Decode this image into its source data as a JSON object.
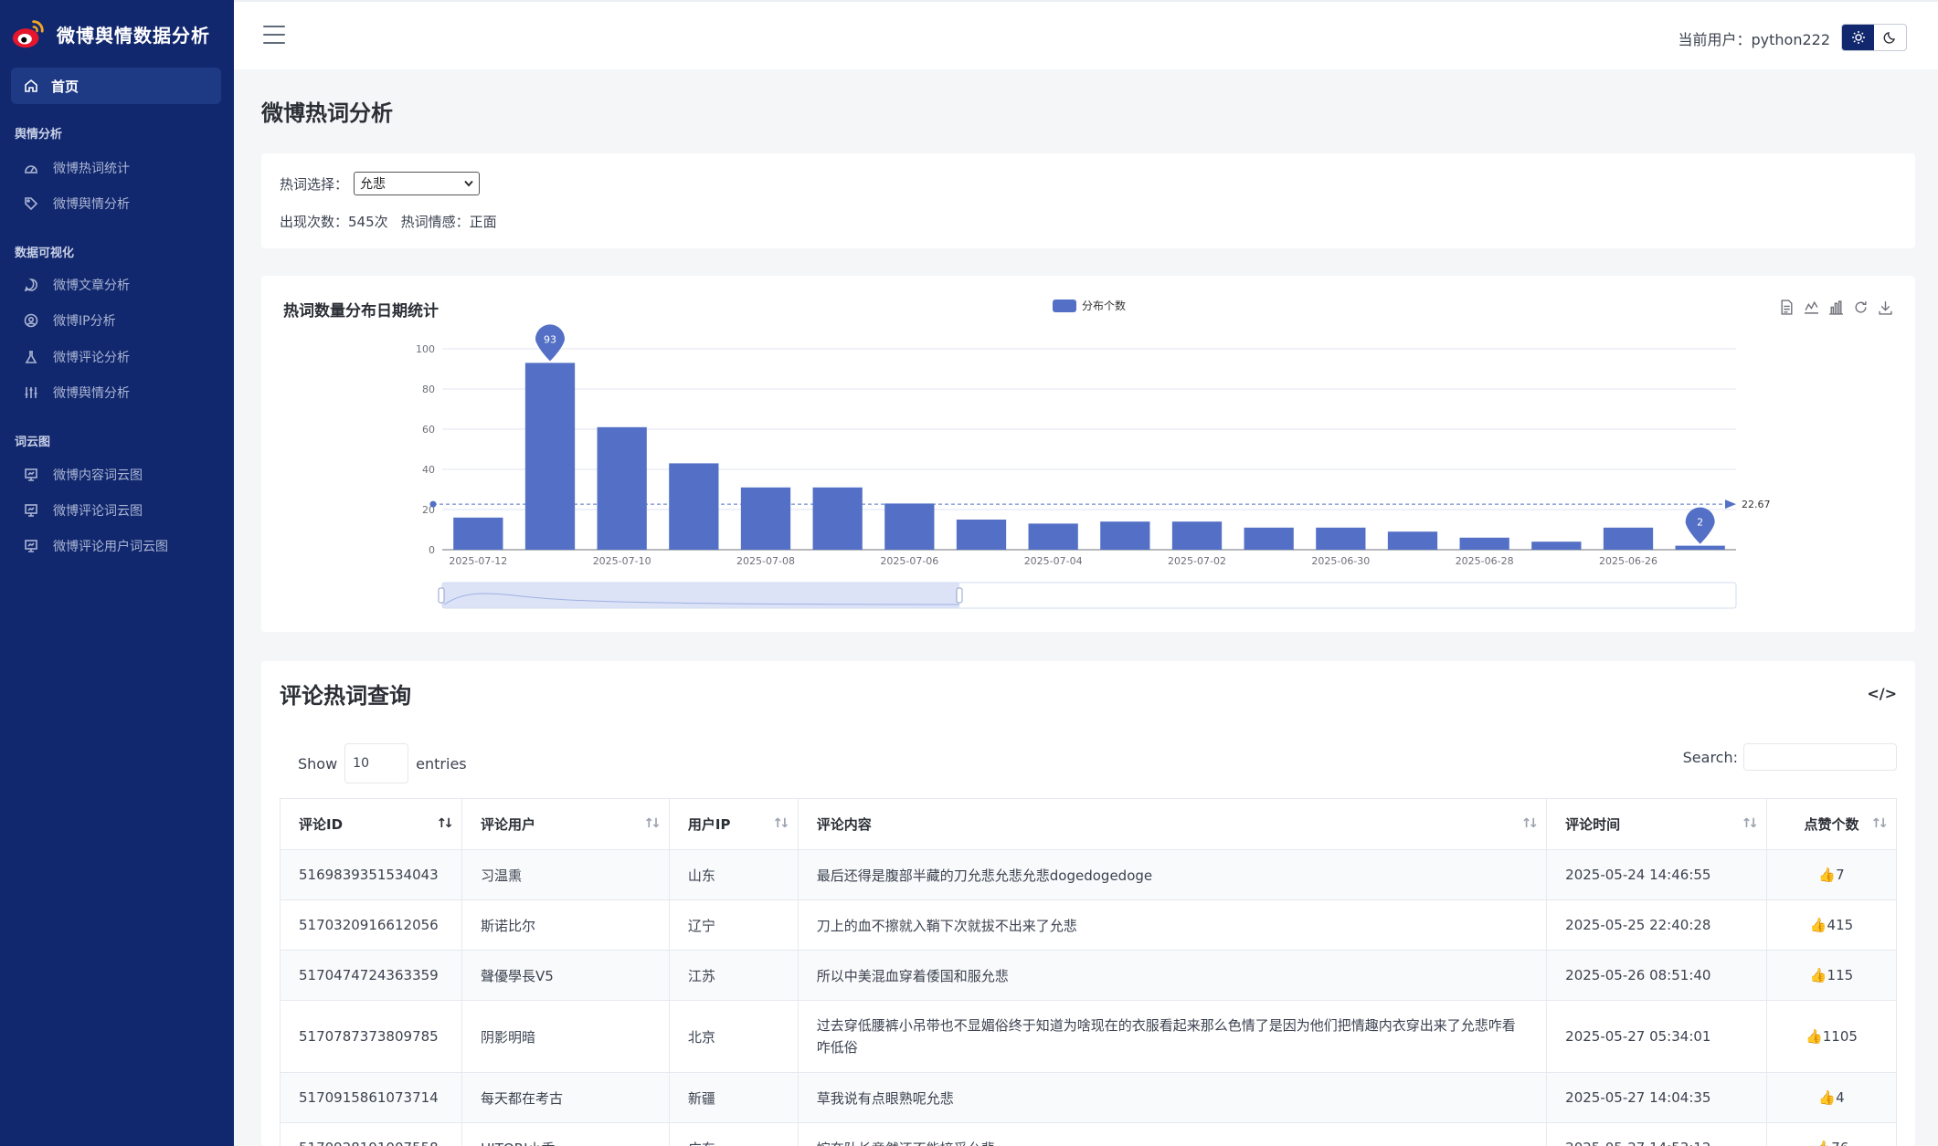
{
  "app": {
    "title": "微博舆情数据分析"
  },
  "sidebar": {
    "home": "首页",
    "sections": [
      {
        "title": "舆情分析",
        "items": [
          "微博热词统计",
          "微博舆情分析"
        ]
      },
      {
        "title": "数据可视化",
        "items": [
          "微博文章分析",
          "微博IP分析",
          "微博评论分析",
          "微博舆情分析"
        ]
      },
      {
        "title": "词云图",
        "items": [
          "微博内容词云图",
          "微博评论词云图",
          "微博评论用户词云图"
        ]
      }
    ]
  },
  "header": {
    "current_user": "当前用户：python222"
  },
  "page": {
    "title": "微博热词分析"
  },
  "select_card": {
    "label": "热词选择：",
    "selected": "允悲",
    "occurrences": "出现次数：545次",
    "sentiment": "热词情感：正面"
  },
  "chart_data": {
    "type": "bar",
    "title": "热词数量分布日期统计",
    "legend": "分布个数",
    "categories": [
      "2025-07-12",
      "2025-07-11",
      "2025-07-10",
      "2025-07-09",
      "2025-07-08",
      "2025-07-07",
      "2025-07-06",
      "2025-07-05",
      "2025-07-04",
      "2025-07-03",
      "2025-07-02",
      "2025-07-01",
      "2025-06-30",
      "2025-06-29",
      "2025-06-28",
      "2025-06-27",
      "2025-06-26",
      "2025-06-25"
    ],
    "tick_labels": [
      "2025-07-12",
      "2025-07-10",
      "2025-07-08",
      "2025-07-06",
      "2025-07-04",
      "2025-07-02",
      "2025-06-30",
      "2025-06-28",
      "2025-06-26"
    ],
    "values": [
      16,
      93,
      61,
      43,
      31,
      31,
      23,
      15,
      13,
      14,
      14,
      11,
      11,
      9,
      6,
      4,
      11,
      2
    ],
    "ylim": [
      0,
      100
    ],
    "yticks": [
      0,
      20,
      40,
      60,
      80,
      100
    ],
    "max_label": "93",
    "min_label": "2",
    "average": 22.67,
    "average_label": "22.67",
    "color": "#5470c6",
    "grid": true
  },
  "table_card": {
    "title": "评论热词查询",
    "code_icon": "</>",
    "show": "Show",
    "length": "10",
    "entries": "entries",
    "search_label": "Search:",
    "columns": [
      "评论ID",
      "评论用户",
      "用户IP",
      "评论内容",
      "评论时间",
      "点赞个数"
    ],
    "rows": [
      {
        "id": "5169839351534043",
        "user": "习温熏",
        "ip": "山东",
        "content": "最后还得是腹部半藏的刀允悲允悲允悲dogedogedoge",
        "time": "2025-05-24 14:46:55",
        "likes": "👍7"
      },
      {
        "id": "5170320916612056",
        "user": "斯诺比尔",
        "ip": "辽宁",
        "content": "刀上的血不擦就入鞘下次就拔不出来了允悲",
        "time": "2025-05-25 22:40:28",
        "likes": "👍415"
      },
      {
        "id": "5170474724363359",
        "user": "聲優學長V5",
        "ip": "江苏",
        "content": "所以中美混血穿着倭国和服允悲",
        "time": "2025-05-26 08:51:40",
        "likes": "👍115"
      },
      {
        "id": "5170787373809785",
        "user": "阴影明暗",
        "ip": "北京",
        "content": "过去穿低腰裤小吊带也不显媚俗终于知道为啥现在的衣服看起来那么色情了是因为他们把情趣内衣穿出来了允悲咋看咋低俗",
        "time": "2025-05-27 05:34:01",
        "likes": "👍1105"
      },
      {
        "id": "5170915861073714",
        "user": "每天都在考古",
        "ip": "新疆",
        "content": "草我说有点眼熟呢允悲",
        "time": "2025-05-27 14:04:35",
        "likes": "👍4"
      },
      {
        "id": "5170928191007558",
        "user": "HITORI小香",
        "ip": "广东",
        "content": "婉奈队长竟然还不能接受允悲",
        "time": "2025-05-27 14:53:12",
        "likes": "👍76"
      }
    ]
  }
}
